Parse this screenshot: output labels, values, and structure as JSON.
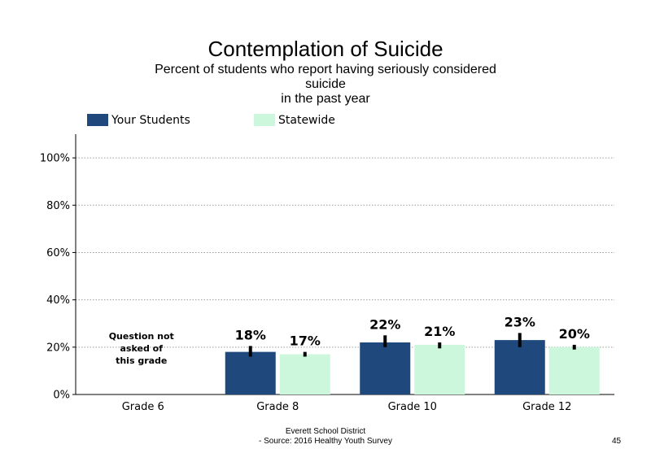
{
  "chart_data": {
    "type": "bar",
    "title": "Contemplation of Suicide",
    "subtitle_lines": [
      "Percent of students who report having seriously considered",
      "suicide",
      "in the past year"
    ],
    "categories": [
      "Grade 6",
      "Grade 8",
      "Grade 10",
      "Grade 12"
    ],
    "series": [
      {
        "name": "Your Students",
        "color": "#1f497d",
        "values": [
          null,
          18,
          22,
          23
        ],
        "labels": [
          "",
          "18%",
          "22%",
          "23%"
        ],
        "error_low": [
          null,
          16,
          20,
          20
        ],
        "error_high": [
          null,
          20.5,
          25,
          26
        ]
      },
      {
        "name": "Statewide",
        "color": "#ccf7dc",
        "values": [
          null,
          17,
          21,
          20
        ],
        "labels": [
          "",
          "17%",
          "21%",
          "20%"
        ],
        "error_low": [
          null,
          16,
          19.5,
          19
        ],
        "error_high": [
          null,
          18,
          22,
          21
        ]
      }
    ],
    "ylim": [
      0,
      100
    ],
    "y_ticks": [
      0,
      20,
      40,
      60,
      80,
      100
    ],
    "y_tick_labels": [
      "0%",
      "20%",
      "40%",
      "60%",
      "80%",
      "100%"
    ],
    "grid": "horizontal dotted",
    "legend_position": "top",
    "annotation_lines": [
      "Question not",
      "asked of",
      "this grade"
    ]
  },
  "footer": {
    "district": "Everett School District",
    "source": "- Source: 2016 Healthy  Youth Survey",
    "page_number": "45"
  }
}
